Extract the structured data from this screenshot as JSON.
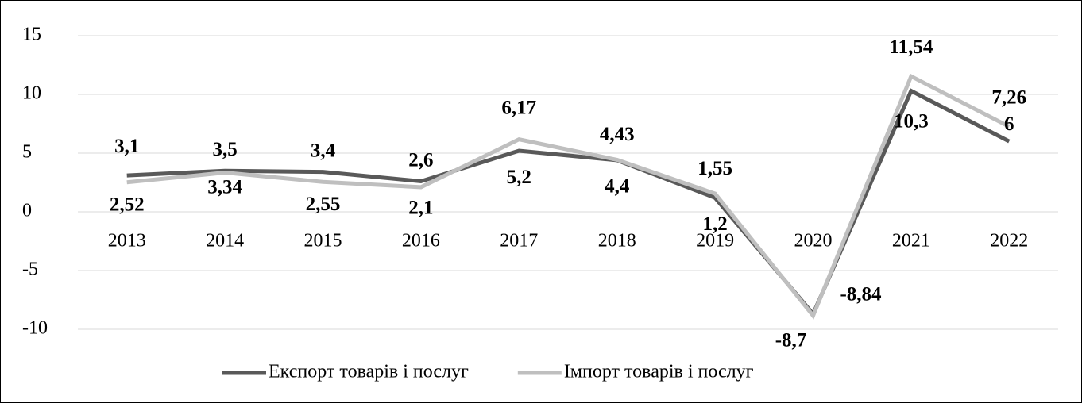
{
  "chart_data": {
    "type": "line",
    "categories": [
      "2013",
      "2014",
      "2015",
      "2016",
      "2017",
      "2018",
      "2019",
      "2020",
      "2021",
      "2022"
    ],
    "series": [
      {
        "name": "Експорт товарів і послуг",
        "color": "#595959",
        "values": [
          3.1,
          3.5,
          3.4,
          2.6,
          5.2,
          4.4,
          1.2,
          -8.7,
          10.3,
          6
        ],
        "value_labels": [
          "3,1",
          "3,5",
          "3,4",
          "2,6",
          "5,2",
          "4,4",
          "1,2",
          "-8,7",
          "10,3",
          "6"
        ]
      },
      {
        "name": "Імпорт товарів і послуг",
        "color": "#bfbfbf",
        "values": [
          2.52,
          3.34,
          2.55,
          2.1,
          6.17,
          4.43,
          1.55,
          -8.84,
          11.54,
          7.26
        ],
        "value_labels": [
          "2,52",
          "3,34",
          "2,55",
          "2,1",
          "6,17",
          "4,43",
          "1,55",
          "-8,84",
          "11,54",
          "7,26"
        ]
      }
    ],
    "ylim": [
      -10,
      15
    ],
    "yticks": [
      15,
      10,
      5,
      0,
      -5,
      -10
    ],
    "grid": true,
    "legend": "bottom"
  }
}
